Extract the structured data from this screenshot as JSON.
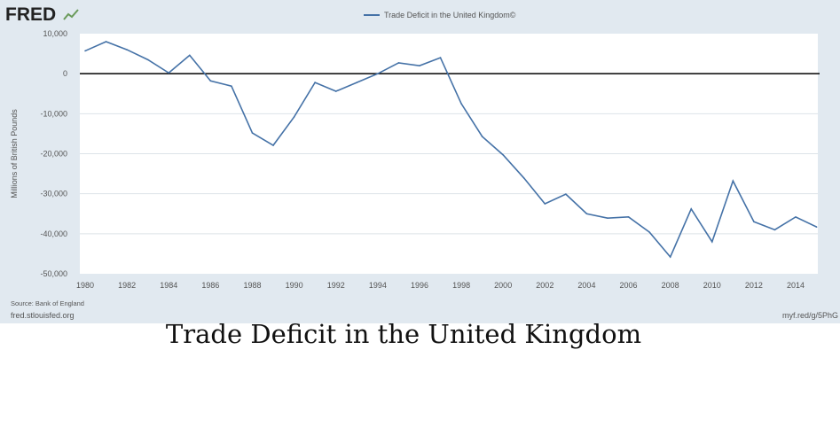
{
  "brand": {
    "logo": "FRED"
  },
  "footer": {
    "source": "Source: Bank of England",
    "site": "fred.stlouisfed.org",
    "shortlink": "myf.red/g/5PhG"
  },
  "caption": "Trade Deficit in the United Kingdom",
  "chart_data": {
    "type": "line",
    "title": "",
    "legend": [
      "Trade Deficit in the United Kingdom©"
    ],
    "legend_placement": "top-center",
    "ylabel": "Millions of British Pounds",
    "xlabel": "",
    "ylim": [
      -50000,
      10000
    ],
    "xlim": [
      1980,
      2015
    ],
    "yticks": [
      10000,
      0,
      -10000,
      -20000,
      -30000,
      -40000,
      -50000
    ],
    "ytick_labels": [
      "10,000",
      "0",
      "-10,000",
      "-20,000",
      "-30,000",
      "-40,000",
      "-50,000"
    ],
    "xticks": [
      "1980",
      "1982",
      "1984",
      "1986",
      "1988",
      "1990",
      "1992",
      "1994",
      "1996",
      "1998",
      "2000",
      "2002",
      "2004",
      "2006",
      "2008",
      "2010",
      "2012",
      "2014"
    ],
    "grid": true,
    "colors": {
      "line": "#4572a7",
      "zero_line": "#000000",
      "background": "#e1e9f0"
    },
    "series": [
      {
        "name": "Trade Deficit in the United Kingdom©",
        "x": [
          1980,
          1981,
          1982,
          1983,
          1984,
          1985,
          1986,
          1987,
          1988,
          1989,
          1990,
          1991,
          1992,
          1993,
          1994,
          1995,
          1996,
          1997,
          1998,
          1999,
          2000,
          2001,
          2002,
          2003,
          2004,
          2005,
          2006,
          2007,
          2008,
          2009,
          2010,
          2011,
          2012,
          2013,
          2014,
          2015
        ],
        "values": [
          5700,
          8000,
          6000,
          3500,
          200,
          4600,
          -1800,
          -3100,
          -14800,
          -17900,
          -10800,
          -2200,
          -4400,
          -2200,
          0,
          2700,
          2000,
          4000,
          -7500,
          -15700,
          -20300,
          -26100,
          -32500,
          -30100,
          -35000,
          -36100,
          -35800,
          -39600,
          -45800,
          -33800,
          -42000,
          -26800,
          -37000,
          -39000,
          -35800,
          -38300
        ]
      }
    ]
  }
}
